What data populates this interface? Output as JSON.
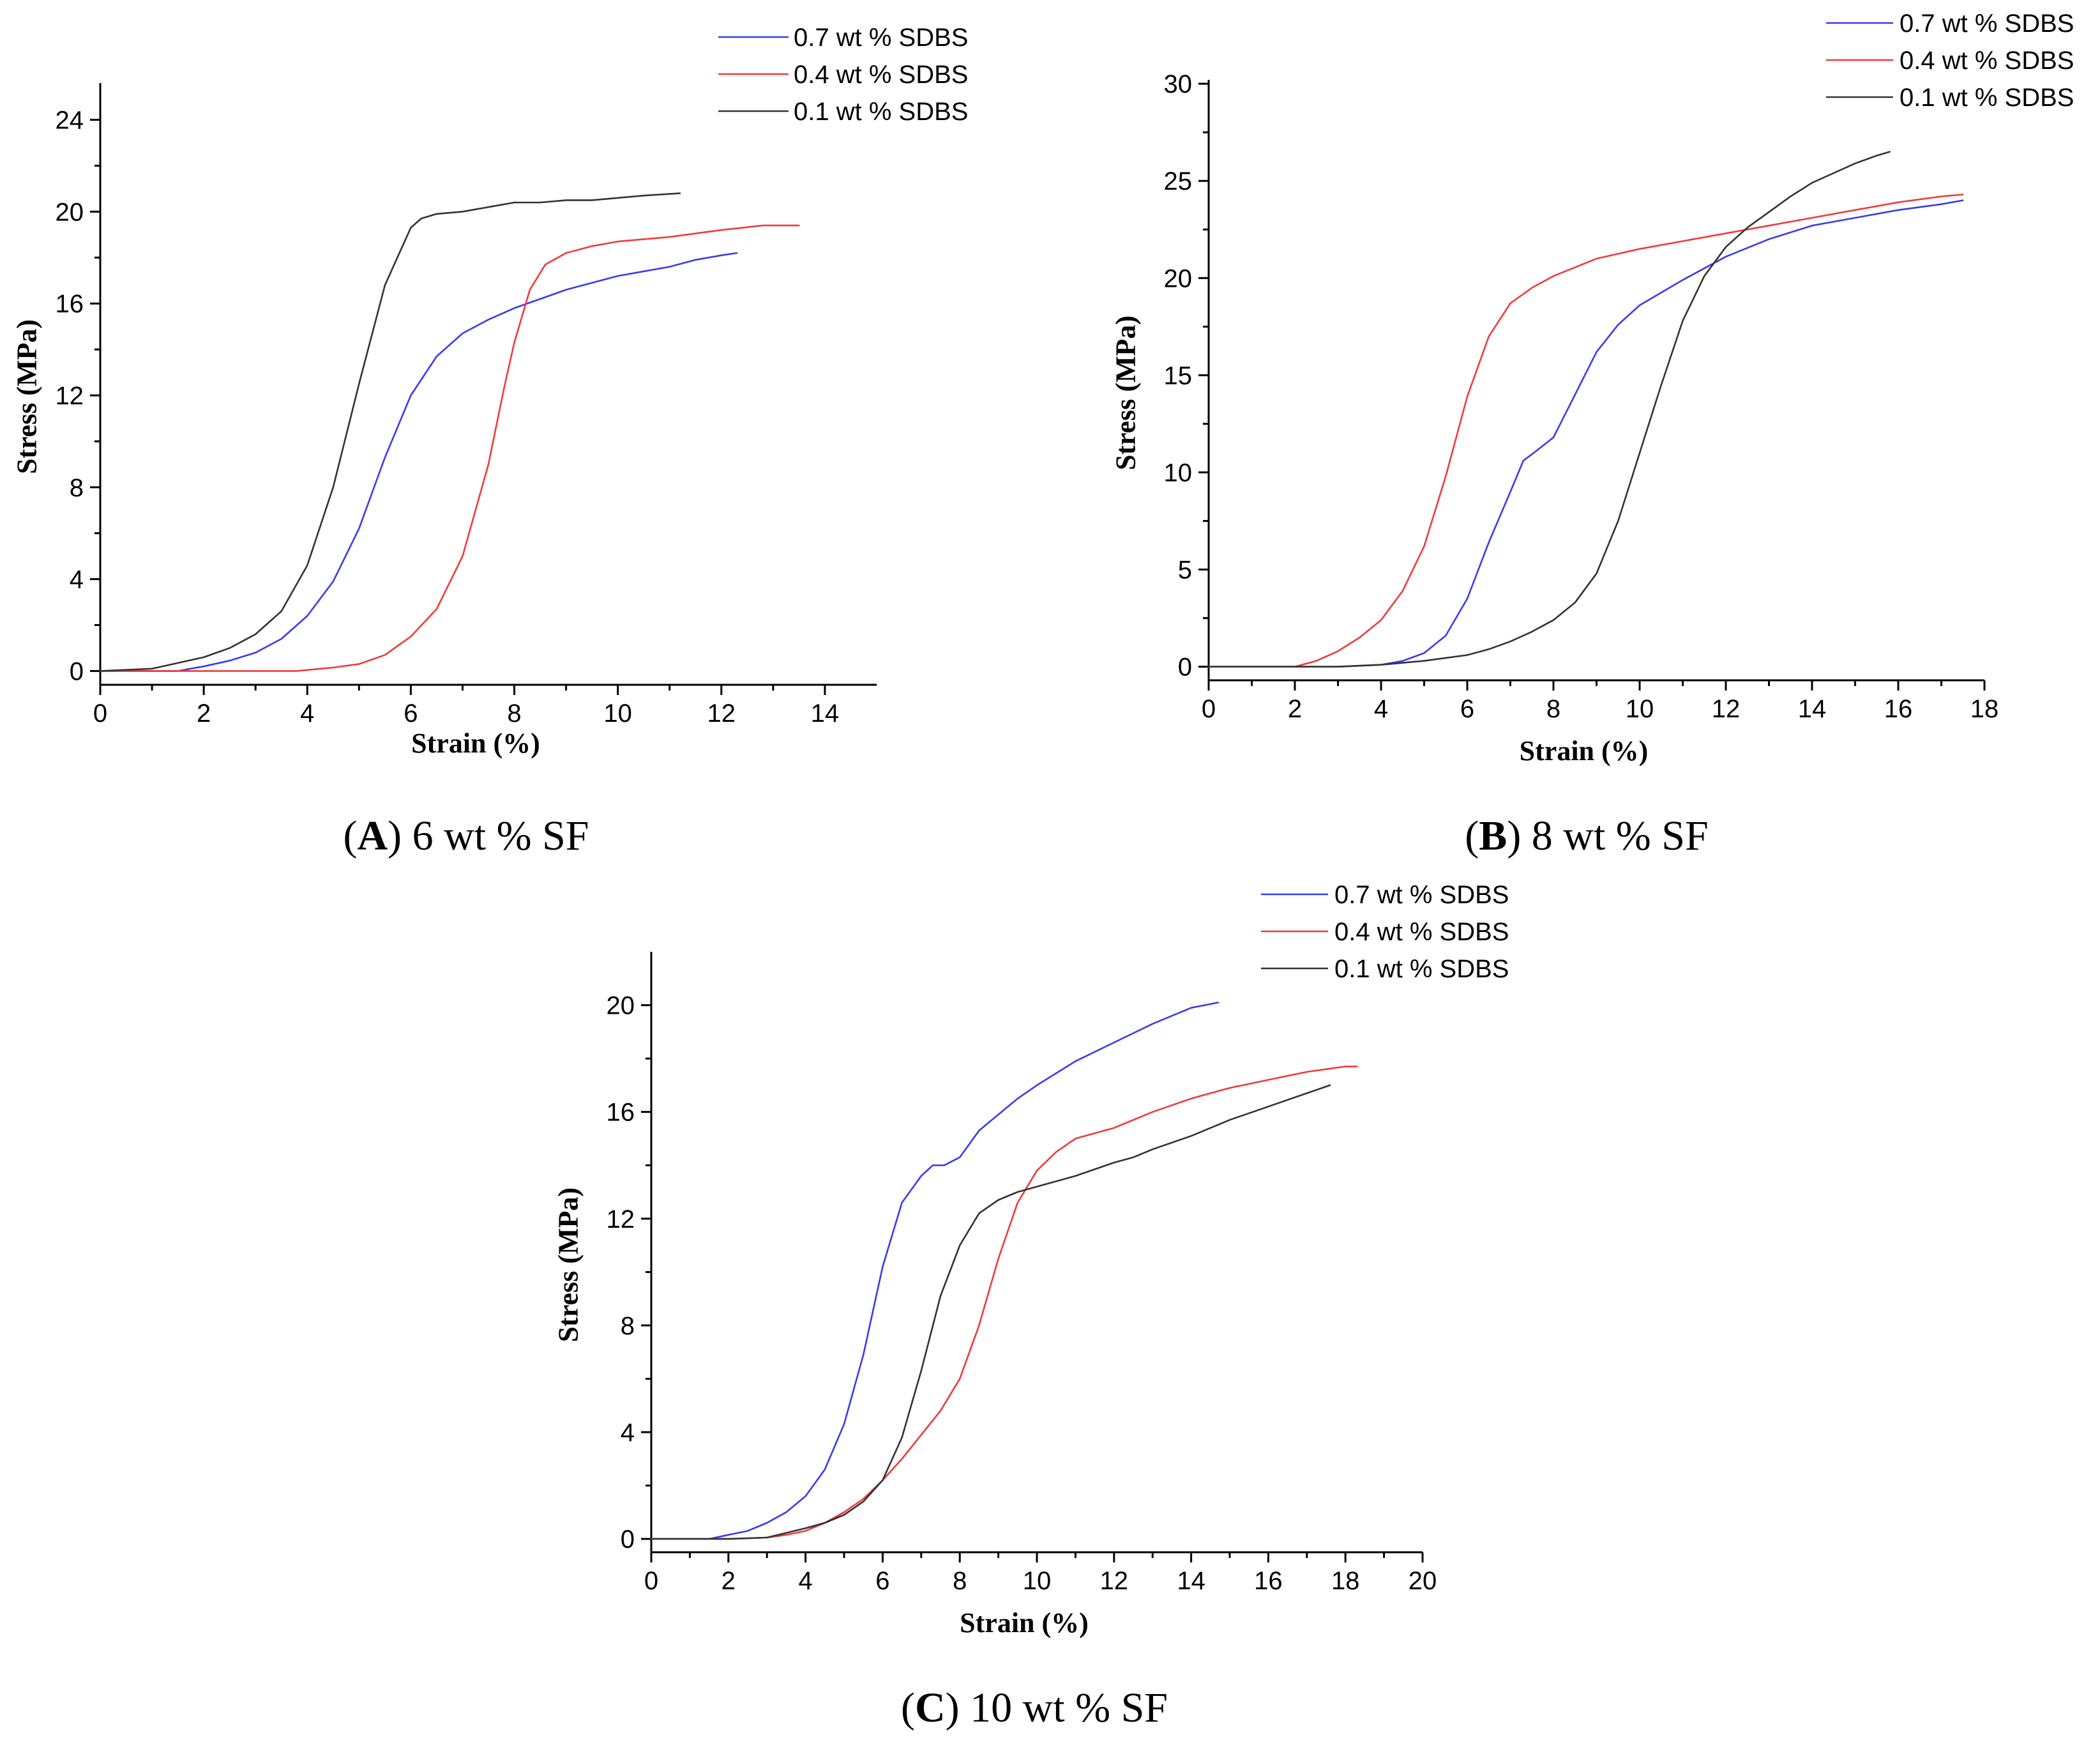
{
  "colors": {
    "blue": "#3a3af0",
    "red": "#f03a3a",
    "black": "#333333"
  },
  "chart_data": [
    {
      "id": "A",
      "type": "line",
      "caption": {
        "letter": "A",
        "text": "6 wt % SF"
      },
      "xlabel": "Strain (%)",
      "ylabel": "Stress (MPa)",
      "xlim": [
        0,
        15
      ],
      "ylim": [
        -0.6,
        25.6
      ],
      "xticks": [
        0,
        2,
        4,
        6,
        8,
        10,
        12,
        14
      ],
      "yticks": [
        0,
        4,
        8,
        12,
        16,
        20,
        24
      ],
      "legend_position": "top-right",
      "series": [
        {
          "name": "0.7 wt % SDBS",
          "color": "#3a3af0",
          "x": [
            0,
            1.5,
            2,
            2.5,
            3,
            3.5,
            4,
            4.5,
            5,
            5.5,
            6,
            6.5,
            7,
            7.5,
            8,
            8.5,
            9,
            9.5,
            10,
            10.5,
            11,
            11.5,
            12,
            12.3
          ],
          "y": [
            0,
            0,
            0.2,
            0.45,
            0.8,
            1.4,
            2.4,
            3.9,
            6.2,
            9.3,
            12.0,
            13.7,
            14.7,
            15.3,
            15.8,
            16.2,
            16.6,
            16.9,
            17.2,
            17.4,
            17.6,
            17.9,
            18.1,
            18.2
          ]
        },
        {
          "name": "0.4 wt % SDBS",
          "color": "#f03a3a",
          "x": [
            0,
            1,
            2,
            3,
            3.8,
            4.5,
            5,
            5.5,
            6,
            6.5,
            7,
            7.5,
            7.8,
            8,
            8.3,
            8.6,
            9,
            9.5,
            10,
            11,
            12,
            12.8,
            13.5
          ],
          "y": [
            0,
            0,
            0,
            0,
            0,
            0.15,
            0.3,
            0.7,
            1.5,
            2.7,
            5.0,
            9.0,
            12.3,
            14.3,
            16.6,
            17.7,
            18.2,
            18.5,
            18.7,
            18.9,
            19.2,
            19.4,
            19.4
          ]
        },
        {
          "name": "0.1 wt % SDBS",
          "color": "#333333",
          "x": [
            0,
            1,
            2,
            2.5,
            3,
            3.5,
            4,
            4.5,
            5,
            5.5,
            6,
            6.2,
            6.5,
            7,
            7.5,
            8,
            8.5,
            9,
            9.5,
            10,
            10.5,
            11.2
          ],
          "y": [
            0,
            0.1,
            0.6,
            1.0,
            1.6,
            2.6,
            4.6,
            8.0,
            12.5,
            16.8,
            19.3,
            19.7,
            19.9,
            20.0,
            20.2,
            20.4,
            20.4,
            20.5,
            20.5,
            20.6,
            20.7,
            20.8
          ]
        }
      ]
    },
    {
      "id": "B",
      "type": "line",
      "caption": {
        "letter": "B",
        "text": "8 wt % SF"
      },
      "xlabel": "Strain (%)",
      "ylabel": "Stress (MPa)",
      "xlim": [
        0,
        18
      ],
      "ylim": [
        -0.7,
        30.2
      ],
      "xticks": [
        0,
        2,
        4,
        6,
        8,
        10,
        12,
        14,
        16,
        18
      ],
      "yticks": [
        0,
        5,
        10,
        15,
        20,
        25,
        30
      ],
      "legend_position": "top-right",
      "series": [
        {
          "name": "0.7 wt % SDBS",
          "color": "#3a3af0",
          "x": [
            0,
            2,
            3,
            4,
            4.5,
            5,
            5.5,
            6,
            6.5,
            7,
            7.3,
            7.6,
            8,
            8.5,
            9,
            9.5,
            10,
            11,
            12,
            13,
            14,
            15,
            16,
            17,
            17.5
          ],
          "y": [
            0,
            0,
            0,
            0.1,
            0.3,
            0.7,
            1.6,
            3.5,
            6.4,
            9.0,
            10.6,
            11.1,
            11.8,
            14.0,
            16.2,
            17.6,
            18.6,
            19.9,
            21.1,
            22.0,
            22.7,
            23.1,
            23.5,
            23.8,
            24.0
          ]
        },
        {
          "name": "0.4 wt % SDBS",
          "color": "#f03a3a",
          "x": [
            0,
            2,
            2.5,
            3,
            3.5,
            4,
            4.5,
            5,
            5.5,
            6,
            6.5,
            7,
            7.5,
            8,
            9,
            10,
            11,
            12,
            13,
            14,
            15,
            16,
            17,
            17.5
          ],
          "y": [
            0,
            0,
            0.3,
            0.8,
            1.5,
            2.4,
            3.9,
            6.2,
            9.8,
            13.9,
            17.0,
            18.7,
            19.5,
            20.1,
            21.0,
            21.5,
            21.9,
            22.3,
            22.7,
            23.1,
            23.5,
            23.9,
            24.2,
            24.3
          ]
        },
        {
          "name": "0.1 wt % SDBS",
          "color": "#333333",
          "x": [
            0,
            3,
            4,
            5,
            6,
            6.5,
            7,
            7.5,
            8,
            8.5,
            9,
            9.5,
            10,
            10.5,
            11,
            11.5,
            12,
            12.5,
            13,
            13.5,
            14,
            14.5,
            15,
            15.5,
            15.8
          ],
          "y": [
            0,
            0,
            0.1,
            0.3,
            0.6,
            0.9,
            1.3,
            1.8,
            2.4,
            3.3,
            4.8,
            7.5,
            11.0,
            14.5,
            17.8,
            20.1,
            21.6,
            22.6,
            23.4,
            24.2,
            24.9,
            25.4,
            25.9,
            26.3,
            26.5
          ]
        }
      ]
    },
    {
      "id": "C",
      "type": "line",
      "caption": {
        "letter": "C",
        "text": "10 wt % SF"
      },
      "xlabel": "Strain (%)",
      "ylabel": "Stress (MPa)",
      "xlim": [
        0,
        20
      ],
      "ylim": [
        -0.5,
        22
      ],
      "xticks": [
        0,
        2,
        4,
        6,
        8,
        10,
        12,
        14,
        16,
        18,
        20
      ],
      "yticks": [
        0,
        4,
        8,
        12,
        16,
        20
      ],
      "legend_position": "top-right",
      "series": [
        {
          "name": "0.7 wt % SDBS",
          "color": "#3a3af0",
          "x": [
            0,
            1.5,
            2,
            2.5,
            3,
            3.5,
            4,
            4.5,
            5,
            5.5,
            6,
            6.5,
            7,
            7.3,
            7.6,
            8,
            8.5,
            9,
            9.5,
            10,
            11,
            12,
            13,
            14,
            14.7
          ],
          "y": [
            0,
            0,
            0.15,
            0.3,
            0.6,
            1.0,
            1.6,
            2.6,
            4.3,
            6.9,
            10.2,
            12.6,
            13.6,
            14.0,
            14.0,
            14.3,
            15.3,
            15.9,
            16.5,
            17.0,
            17.9,
            18.6,
            19.3,
            19.9,
            20.1
          ]
        },
        {
          "name": "0.4 wt % SDBS",
          "color": "#f03a3a",
          "x": [
            0,
            1.5,
            2,
            3,
            3.5,
            4,
            4.5,
            5,
            5.5,
            6,
            6.5,
            7,
            7.5,
            8,
            8.5,
            9,
            9.5,
            10,
            10.5,
            11,
            12,
            13,
            14,
            15,
            16,
            17,
            18,
            18.3
          ],
          "y": [
            0,
            0,
            0,
            0.05,
            0.15,
            0.3,
            0.6,
            1.0,
            1.5,
            2.2,
            3.0,
            3.9,
            4.8,
            6.0,
            8.0,
            10.5,
            12.6,
            13.8,
            14.5,
            15.0,
            15.4,
            16.0,
            16.5,
            16.9,
            17.2,
            17.5,
            17.7,
            17.7
          ]
        },
        {
          "name": "0.1 wt % SDBS",
          "color": "#333333",
          "x": [
            0,
            2,
            3,
            4,
            4.5,
            5,
            5.5,
            6,
            6.5,
            7,
            7.5,
            8,
            8.5,
            9,
            9.5,
            10,
            10.5,
            11,
            12,
            12.5,
            13,
            14,
            15,
            16,
            17,
            17.6
          ],
          "y": [
            0,
            0,
            0.05,
            0.4,
            0.6,
            0.9,
            1.4,
            2.2,
            3.8,
            6.3,
            9.1,
            11.0,
            12.2,
            12.7,
            13.0,
            13.2,
            13.4,
            13.6,
            14.1,
            14.3,
            14.6,
            15.1,
            15.7,
            16.2,
            16.7,
            17.0
          ]
        }
      ]
    }
  ]
}
